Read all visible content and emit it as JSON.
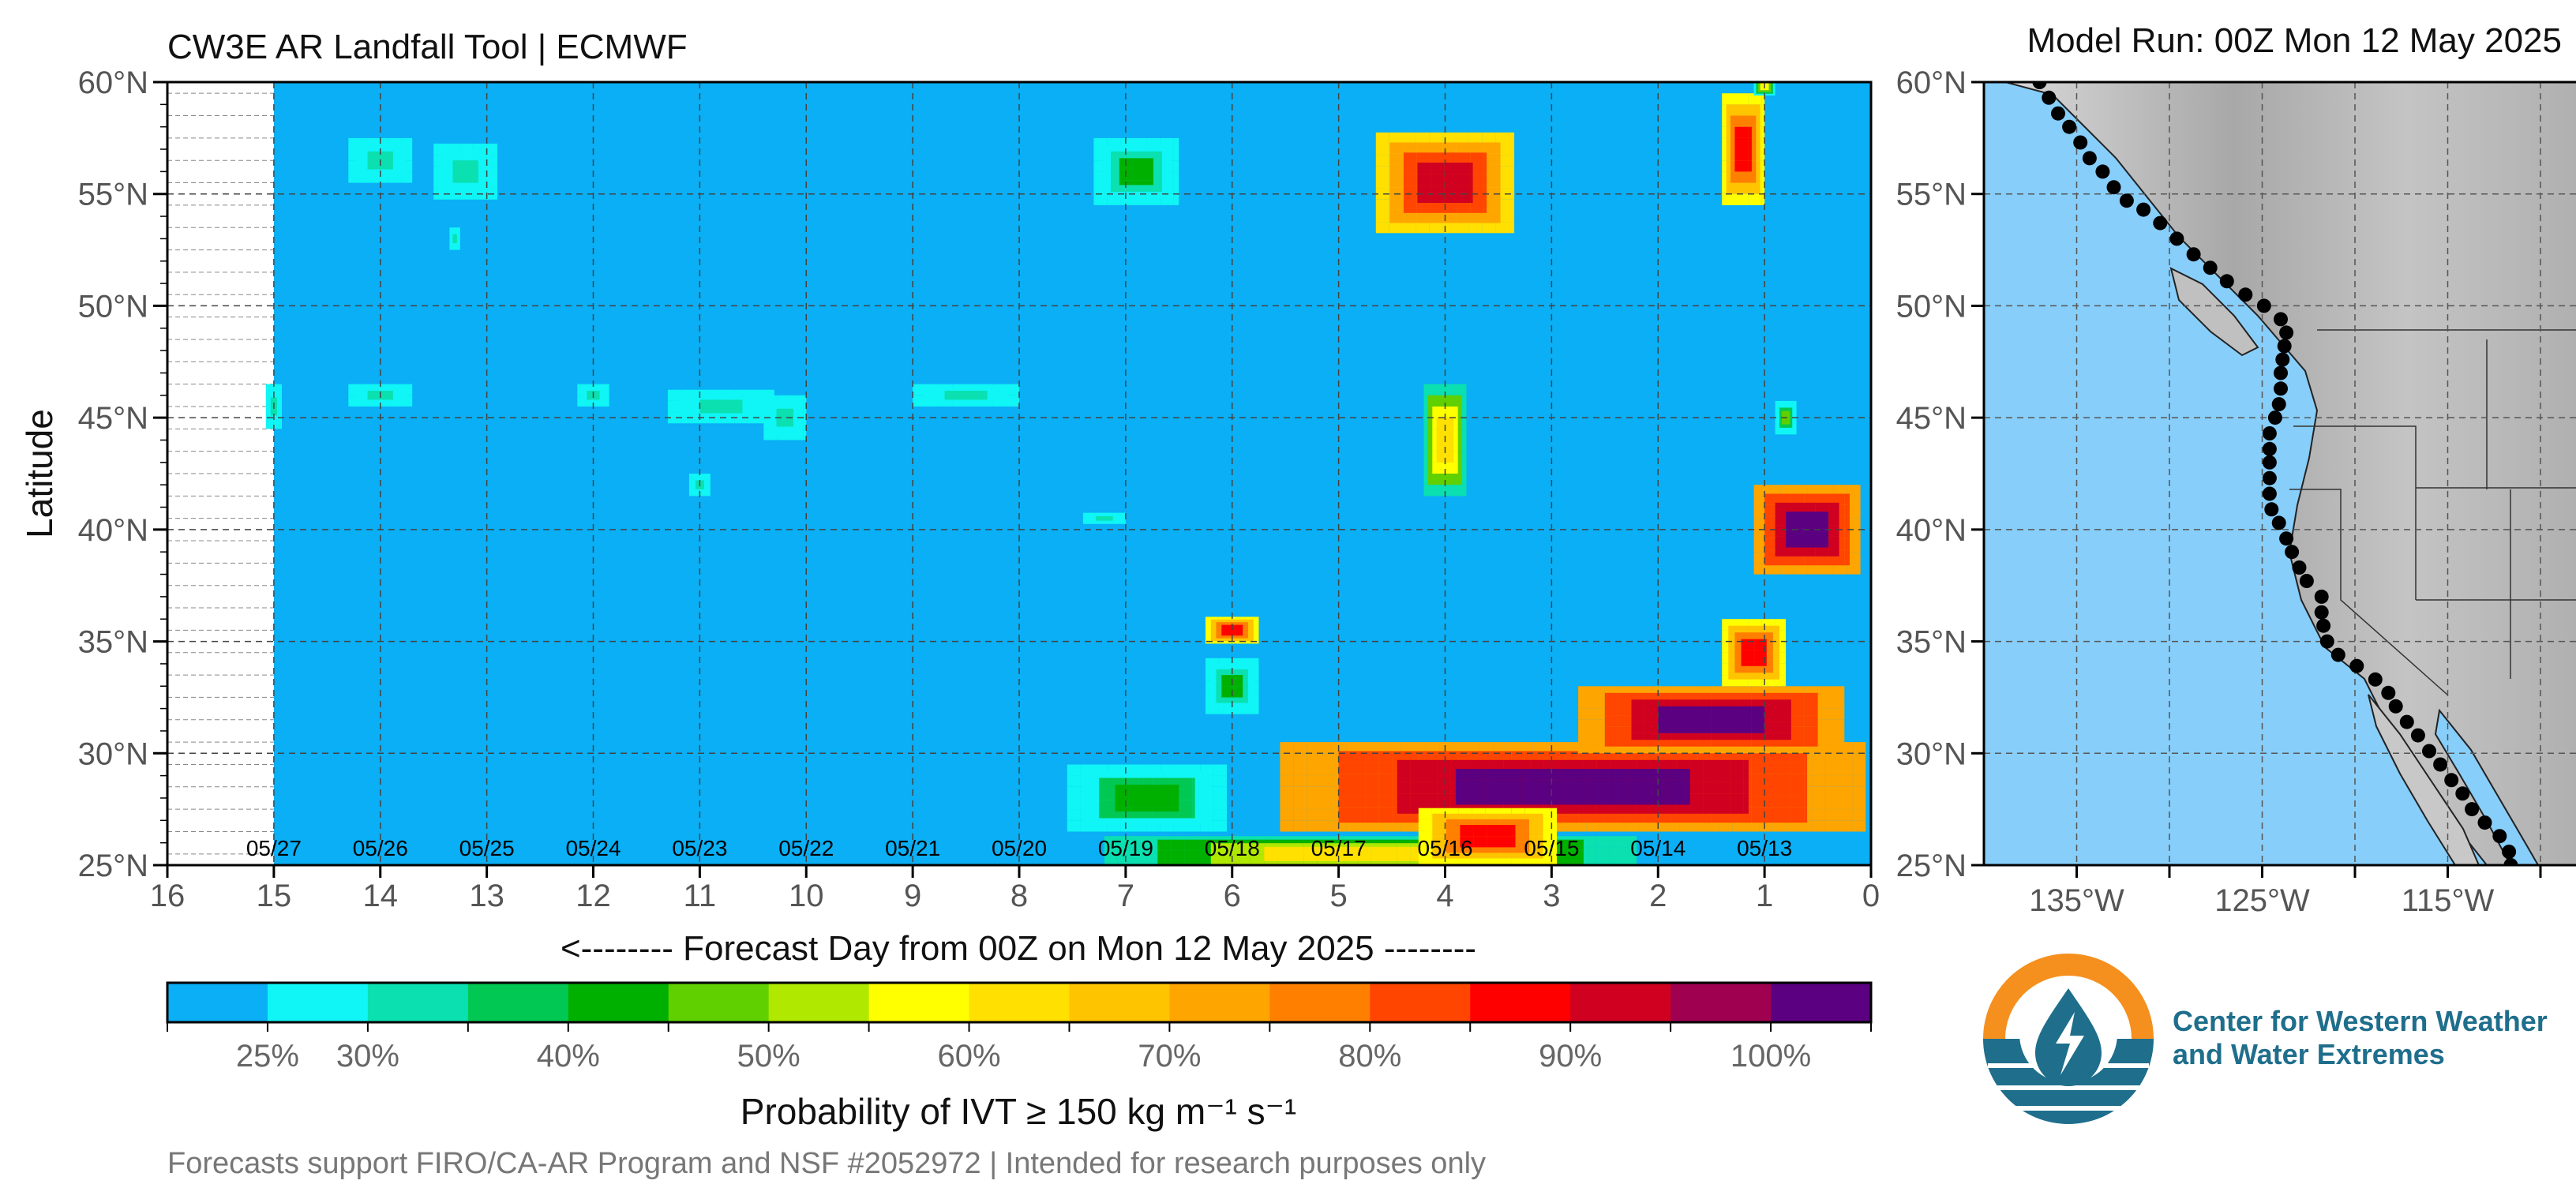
{
  "header": {
    "title": "CW3E AR Landfall Tool | ECMWF",
    "model_run": "Model Run: 00Z Mon 12 May 2025"
  },
  "footer": {
    "note": "Forecasts support FIRO/CA-AR Program and NSF #2052972 | Intended for research purposes only"
  },
  "logo": {
    "line1": "Center for Western Weather",
    "line2": "and Water Extremes",
    "colors": {
      "orange": "#f5901e",
      "blue": "#1f6e8c"
    }
  },
  "colorbar": {
    "title": "Probability of IVT ≥ 150 kg m⁻¹ s⁻¹",
    "tick_labels": [
      "25%",
      "30%",
      "40%",
      "50%",
      "60%",
      "70%",
      "80%",
      "90%",
      "100%"
    ],
    "tick_values": [
      25,
      30,
      40,
      50,
      60,
      70,
      80,
      90,
      100
    ],
    "colors": [
      "#0aaff5",
      "#10f5f5",
      "#0ae0b0",
      "#00c853",
      "#00b000",
      "#60d000",
      "#b0e800",
      "#ffff00",
      "#ffe000",
      "#ffc400",
      "#ffa500",
      "#ff7f00",
      "#ff4500",
      "#ff0000",
      "#d00020",
      "#a00050",
      "#5a0080"
    ]
  },
  "chart_data": [
    {
      "type": "heatmap",
      "xlabel": "<-------- Forecast Day from 00Z on Mon 12 May 2025 --------",
      "ylabel": "Latitude",
      "xlim": [
        16,
        0
      ],
      "ylim": [
        25,
        60
      ],
      "x_ticks": [
        16,
        15,
        14,
        13,
        12,
        11,
        10,
        9,
        8,
        7,
        6,
        5,
        4,
        3,
        2,
        1,
        0
      ],
      "y_ticks": [
        25,
        30,
        35,
        40,
        45,
        50,
        55,
        60
      ],
      "y_tick_labels": [
        "25°N",
        "30°N",
        "35°N",
        "40°N",
        "45°N",
        "50°N",
        "55°N",
        "60°N"
      ],
      "grid": true,
      "background_value": 20,
      "no_data_region": {
        "x_from": 16,
        "x_to": 15
      },
      "date_labels": [
        {
          "label": "05/13",
          "day": 1
        },
        {
          "label": "05/14",
          "day": 2
        },
        {
          "label": "05/15",
          "day": 3
        },
        {
          "label": "05/16",
          "day": 4
        },
        {
          "label": "05/17",
          "day": 5
        },
        {
          "label": "05/18",
          "day": 6
        },
        {
          "label": "05/19",
          "day": 7
        },
        {
          "label": "05/20",
          "day": 8
        },
        {
          "label": "05/21",
          "day": 9
        },
        {
          "label": "05/22",
          "day": 10
        },
        {
          "label": "05/23",
          "day": 11
        },
        {
          "label": "05/24",
          "day": 12
        },
        {
          "label": "05/25",
          "day": 13
        },
        {
          "label": "05/26",
          "day": 14
        },
        {
          "label": "05/27",
          "day": 15
        }
      ],
      "features": [
        {
          "day": 0.8,
          "lat": 45.0,
          "w": 0.2,
          "h": 1.5,
          "v": 45
        },
        {
          "day": 0.6,
          "lat": 40.0,
          "w": 1.0,
          "h": 4.0,
          "v": 100
        },
        {
          "day": 1.2,
          "lat": 57.0,
          "w": 0.4,
          "h": 5.0,
          "v": 85
        },
        {
          "day": 2.8,
          "lat": 28.5,
          "w": 5.5,
          "h": 4.0,
          "v": 98
        },
        {
          "day": 1.5,
          "lat": 31.5,
          "w": 2.5,
          "h": 3.0,
          "v": 98
        },
        {
          "day": 1.1,
          "lat": 34.5,
          "w": 0.6,
          "h": 3.0,
          "v": 85
        },
        {
          "day": 4.7,
          "lat": 25.5,
          "w": 5.0,
          "h": 1.6,
          "v": 58
        },
        {
          "day": 3.6,
          "lat": 26.3,
          "w": 1.3,
          "h": 2.5,
          "v": 85
        },
        {
          "day": 6.8,
          "lat": 28.0,
          "w": 1.5,
          "h": 3.0,
          "v": 42
        },
        {
          "day": 6.0,
          "lat": 35.5,
          "w": 0.5,
          "h": 1.2,
          "v": 85
        },
        {
          "day": 6.0,
          "lat": 33.0,
          "w": 0.5,
          "h": 2.5,
          "v": 38
        },
        {
          "day": 4.0,
          "lat": 55.5,
          "w": 1.3,
          "h": 4.5,
          "v": 88
        },
        {
          "day": 4.0,
          "lat": 44.0,
          "w": 0.4,
          "h": 5.0,
          "v": 62
        },
        {
          "day": 6.9,
          "lat": 56.0,
          "w": 0.8,
          "h": 3.0,
          "v": 38
        },
        {
          "day": 1.0,
          "lat": 59.8,
          "w": 0.2,
          "h": 0.8,
          "v": 55
        },
        {
          "day": 14.0,
          "lat": 56.5,
          "w": 0.6,
          "h": 2.0,
          "v": 28
        },
        {
          "day": 13.2,
          "lat": 56.0,
          "w": 0.6,
          "h": 2.5,
          "v": 28
        },
        {
          "day": 13.3,
          "lat": 53.0,
          "w": 0.1,
          "h": 1.0,
          "v": 28
        },
        {
          "day": 14.0,
          "lat": 46.0,
          "w": 0.6,
          "h": 1.0,
          "v": 30
        },
        {
          "day": 10.8,
          "lat": 45.5,
          "w": 1.0,
          "h": 1.5,
          "v": 30
        },
        {
          "day": 10.2,
          "lat": 45.0,
          "w": 0.4,
          "h": 2.0,
          "v": 32
        },
        {
          "day": 11.0,
          "lat": 42.0,
          "w": 0.2,
          "h": 1.0,
          "v": 28
        },
        {
          "day": 8.5,
          "lat": 46.0,
          "w": 1.0,
          "h": 1.0,
          "v": 30
        },
        {
          "day": 7.2,
          "lat": 40.5,
          "w": 0.4,
          "h": 0.5,
          "v": 28
        },
        {
          "day": 12.0,
          "lat": 46.0,
          "w": 0.3,
          "h": 1.0,
          "v": 28
        },
        {
          "day": 15.0,
          "lat": 45.5,
          "w": 0.15,
          "h": 2.0,
          "v": 28
        }
      ]
    },
    {
      "type": "scatter",
      "title": "Model Run: 00Z Mon 12 May 2025",
      "xlim": [
        -140,
        -108
      ],
      "ylim": [
        25,
        60
      ],
      "x_ticks": [
        -135,
        -125,
        -115
      ],
      "x_tick_labels": [
        "135°W",
        "125°W",
        "115°W"
      ],
      "y_ticks": [
        25,
        30,
        35,
        40,
        45,
        50,
        55,
        60
      ],
      "y_tick_labels": [
        "25°N",
        "30°N",
        "35°N",
        "40°N",
        "45°N",
        "50°N",
        "55°N",
        "60°N"
      ],
      "grid": true,
      "colors": {
        "ocean": "#87cefa",
        "land": "#b8b8b8",
        "points": "#000000"
      },
      "points": [
        [
          -137.0,
          60.0
        ],
        [
          -136.5,
          59.3
        ],
        [
          -136.0,
          58.6
        ],
        [
          -135.4,
          58.0
        ],
        [
          -134.8,
          57.3
        ],
        [
          -134.3,
          56.6
        ],
        [
          -133.6,
          56.0
        ],
        [
          -133.0,
          55.3
        ],
        [
          -132.3,
          54.7
        ],
        [
          -131.4,
          54.3
        ],
        [
          -130.5,
          53.7
        ],
        [
          -129.6,
          53.0
        ],
        [
          -128.7,
          52.3
        ],
        [
          -127.8,
          51.7
        ],
        [
          -126.9,
          51.1
        ],
        [
          -125.9,
          50.5
        ],
        [
          -124.9,
          50.0
        ],
        [
          -124.0,
          49.4
        ],
        [
          -123.7,
          48.8
        ],
        [
          -123.8,
          48.2
        ],
        [
          -123.9,
          47.6
        ],
        [
          -124.0,
          47.0
        ],
        [
          -124.0,
          46.3
        ],
        [
          -124.1,
          45.6
        ],
        [
          -124.3,
          45.0
        ],
        [
          -124.6,
          44.3
        ],
        [
          -124.6,
          43.6
        ],
        [
          -124.6,
          43.0
        ],
        [
          -124.6,
          42.3
        ],
        [
          -124.6,
          41.6
        ],
        [
          -124.5,
          40.9
        ],
        [
          -124.1,
          40.3
        ],
        [
          -123.7,
          39.6
        ],
        [
          -123.4,
          39.0
        ],
        [
          -123.0,
          38.3
        ],
        [
          -122.6,
          37.7
        ],
        [
          -121.8,
          37.0
        ],
        [
          -121.8,
          36.3
        ],
        [
          -121.7,
          35.7
        ],
        [
          -121.5,
          35.0
        ],
        [
          -120.9,
          34.4
        ],
        [
          -119.9,
          33.9
        ],
        [
          -118.9,
          33.3
        ],
        [
          -118.2,
          32.7
        ],
        [
          -117.8,
          32.1
        ],
        [
          -117.2,
          31.4
        ],
        [
          -116.6,
          30.8
        ],
        [
          -116.0,
          30.1
        ],
        [
          -115.4,
          29.5
        ],
        [
          -114.8,
          28.8
        ],
        [
          -114.2,
          28.2
        ],
        [
          -113.7,
          27.5
        ],
        [
          -113.0,
          26.9
        ],
        [
          -112.2,
          26.3
        ],
        [
          -111.7,
          25.6
        ],
        [
          -111.6,
          25.0
        ]
      ]
    }
  ]
}
